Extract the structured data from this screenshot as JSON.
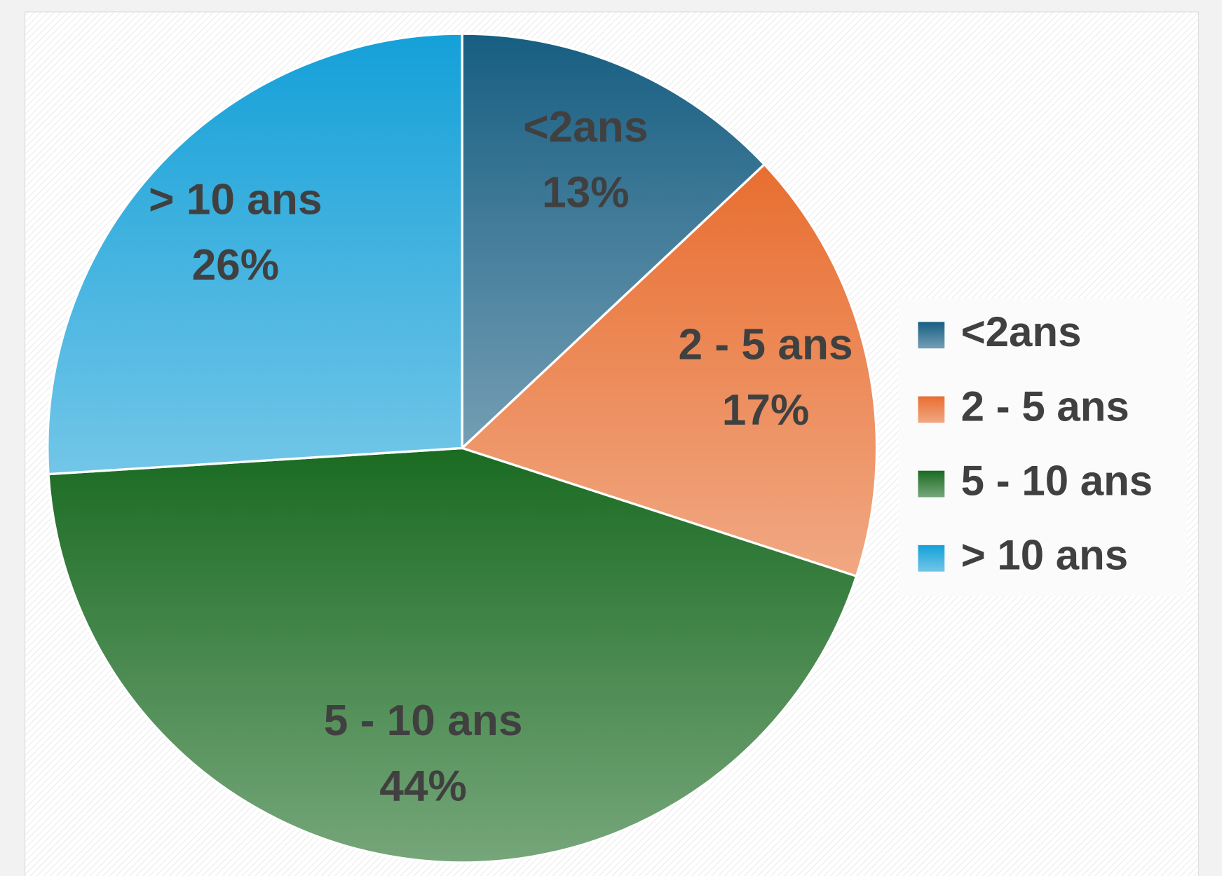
{
  "chart_data": {
    "type": "pie",
    "categories": [
      "<2ans",
      "2 - 5 ans",
      "5 - 10 ans",
      "> 10 ans"
    ],
    "values": [
      13,
      17,
      44,
      26
    ],
    "value_labels": [
      "13%",
      "17%",
      "44%",
      "26%"
    ],
    "colors": [
      "#175e82",
      "#e86e30",
      "#1a6b22",
      "#14a0d8"
    ],
    "legend": "right"
  }
}
